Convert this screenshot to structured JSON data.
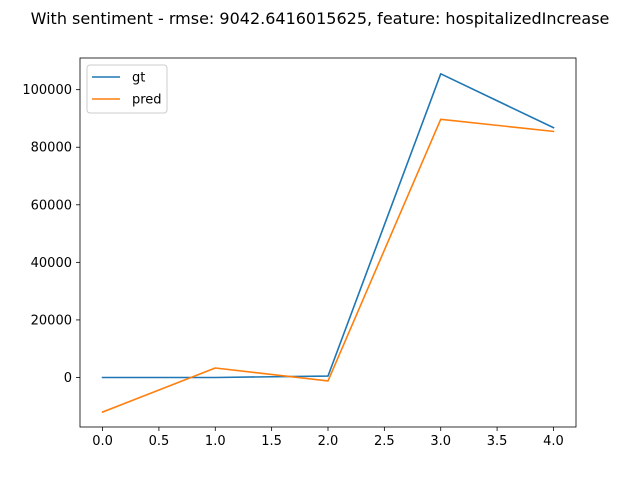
{
  "chart_data": {
    "type": "line",
    "title": "With sentiment - rmse: 9042.6416015625, feature: hospitalizedIncrease",
    "xlabel": "",
    "ylabel": "",
    "x": [
      0,
      1,
      2,
      3,
      4
    ],
    "xlim": [
      -0.2,
      4.2
    ],
    "ylim": [
      -17200,
      111000
    ],
    "xticks": [
      0.0,
      0.5,
      1.0,
      1.5,
      2.0,
      2.5,
      3.0,
      3.5,
      4.0
    ],
    "xtick_labels": [
      "0.0",
      "0.5",
      "1.0",
      "1.5",
      "2.0",
      "2.5",
      "3.0",
      "3.5",
      "4.0"
    ],
    "yticks": [
      0,
      20000,
      40000,
      60000,
      80000,
      100000
    ],
    "ytick_labels": [
      "0",
      "20000",
      "40000",
      "60000",
      "80000",
      "100000"
    ],
    "grid": false,
    "legend_position": "top-left",
    "series": [
      {
        "name": "gt",
        "color": "#1f77b4",
        "values": [
          0,
          0,
          500,
          105500,
          86800
        ]
      },
      {
        "name": "pred",
        "color": "#ff7f0e",
        "values": [
          -12000,
          3300,
          -1200,
          89700,
          85500
        ]
      }
    ]
  }
}
